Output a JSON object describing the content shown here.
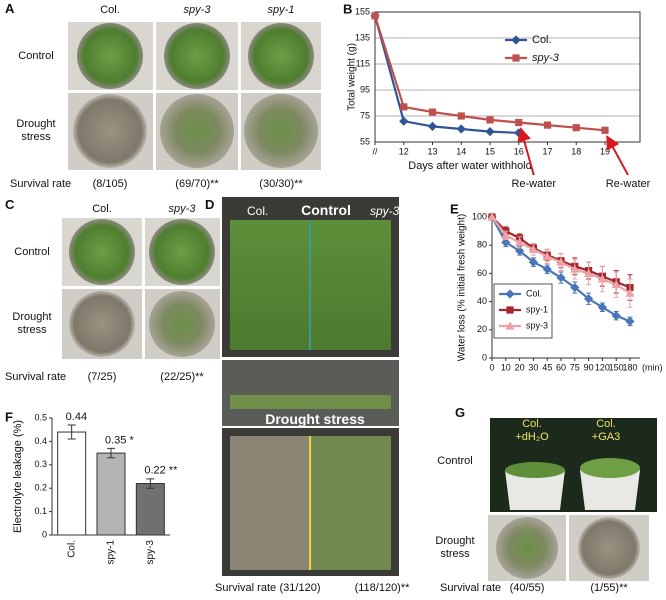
{
  "panels": {
    "A": {
      "label": "A",
      "columns": [
        "Col.",
        "spy-3",
        "spy-1"
      ],
      "rows": [
        "Control",
        "Drought stress"
      ],
      "survival_label": "Survival rate",
      "survival": [
        "(8/105)",
        "(69/70)**",
        "(30/30)**"
      ]
    },
    "C": {
      "label": "C",
      "columns": [
        "Col.",
        "spy-3"
      ],
      "rows": [
        "Control",
        "Drought stress"
      ],
      "survival_label": "Survival rate",
      "survival": [
        "(7/25)",
        "(22/25)**"
      ]
    },
    "D": {
      "label": "D",
      "top_texts": [
        "Col.",
        "Control",
        "spy-3"
      ],
      "middle_text": "Drought stress",
      "survival_label": "Survival rate",
      "survival": [
        "(31/120)",
        "(118/120)**"
      ]
    },
    "G": {
      "label": "G",
      "columns": [
        "Col.",
        "Col."
      ],
      "treatments": [
        "+dH₂O",
        "+GA3"
      ],
      "rows": [
        "Control",
        "Drought stress"
      ],
      "survival_label": "Survival rate",
      "survival": [
        "(40/55)",
        "(1/55)**"
      ]
    }
  },
  "chart_data": [
    {
      "panel": "B",
      "type": "line",
      "y_label": "Total  weight (g)",
      "x_label": "Days after water withhold",
      "categories": [
        "//",
        "12",
        "13",
        "14",
        "15",
        "16",
        "17",
        "18",
        "19"
      ],
      "series": [
        {
          "name": "Col.",
          "color": "#2f5597",
          "marker": "diamond",
          "values": [
            152,
            71,
            67,
            65,
            63,
            62,
            null,
            null,
            null
          ]
        },
        {
          "name": "spy-3",
          "color": "#c0504d",
          "marker": "square",
          "values": [
            152,
            82,
            78,
            75,
            72,
            70,
            68,
            66,
            64
          ]
        }
      ],
      "ylim": [
        55,
        155
      ],
      "yticks": [
        55,
        75,
        95,
        115,
        135,
        155
      ],
      "grid": true,
      "legend": "upper right",
      "annotations": [
        "Re-water",
        "Re-water"
      ],
      "annotation_color": "#d8191f"
    },
    {
      "panel": "E",
      "type": "line",
      "y_label": "Water loss (% initial fresh weight)",
      "x_label": "(min)",
      "categories": [
        "0",
        "10",
        "20",
        "30",
        "45",
        "60",
        "75",
        "90",
        "120",
        "150",
        "180"
      ],
      "series": [
        {
          "name": "Col.",
          "color": "#4a76b8",
          "marker": "diamond",
          "values": [
            100,
            82,
            76,
            68,
            63,
            57,
            50,
            42,
            36,
            30,
            26
          ],
          "errors": [
            0,
            3,
            3,
            3,
            3,
            4,
            4,
            4,
            3,
            3,
            3
          ]
        },
        {
          "name": "spy-1",
          "color": "#a3282e",
          "marker": "square",
          "values": [
            100,
            90,
            85,
            78,
            73,
            69,
            65,
            62,
            58,
            54,
            50
          ],
          "errors": [
            0,
            3,
            3,
            3,
            4,
            5,
            6,
            6,
            7,
            8,
            9
          ]
        },
        {
          "name": "spy-3",
          "color": "#eba3a8",
          "marker": "triangle",
          "values": [
            100,
            87,
            82,
            77,
            72,
            68,
            63,
            60,
            56,
            52,
            46
          ],
          "errors": [
            0,
            3,
            4,
            4,
            5,
            6,
            7,
            8,
            9,
            9,
            10
          ]
        }
      ],
      "ylim": [
        0,
        100
      ],
      "yticks": [
        0,
        20,
        40,
        60,
        80,
        100
      ],
      "grid": false,
      "legend": "lower left"
    },
    {
      "panel": "F",
      "type": "bar",
      "y_label": "Electrolyte leakage (%)",
      "categories": [
        "Col.",
        "spy-1",
        "spy-3"
      ],
      "values": [
        0.44,
        0.35,
        0.22
      ],
      "errors": [
        0.03,
        0.02,
        0.02
      ],
      "value_labels": [
        "0.44",
        "0.35 *",
        "0.22 **"
      ],
      "colors": [
        "#ffffff",
        "#b4b4b4",
        "#707070"
      ],
      "ylim": [
        0,
        0.5
      ],
      "yticks": [
        0,
        0.1,
        0.2,
        0.3,
        0.4,
        0.5
      ],
      "grid": false
    }
  ]
}
